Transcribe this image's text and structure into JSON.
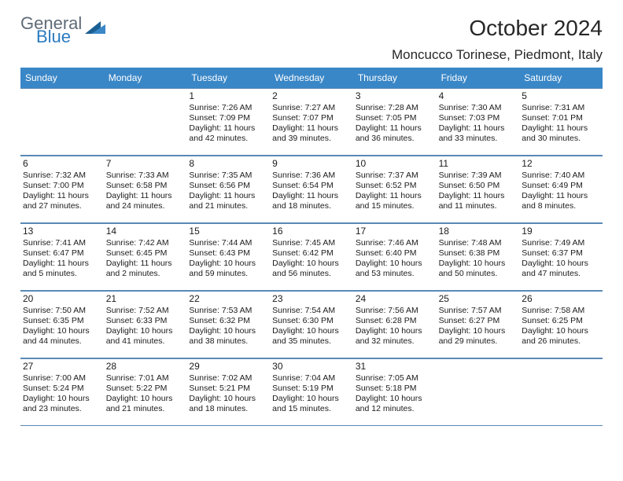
{
  "logo": {
    "word1": "General",
    "word2": "Blue"
  },
  "title": {
    "month": "October 2024",
    "location": "Moncucco Torinese, Piedmont, Italy"
  },
  "colors": {
    "header_bg": "#3a87c7",
    "header_fg": "#ffffff",
    "border": "#5a89b5",
    "text": "#1b1b1b",
    "logo_gray": "#5f6b76",
    "logo_blue": "#2b7bbf",
    "logo_tri_dark": "#1b5f93",
    "logo_tri_light": "#3a87c7"
  },
  "weekdays": [
    "Sunday",
    "Monday",
    "Tuesday",
    "Wednesday",
    "Thursday",
    "Friday",
    "Saturday"
  ],
  "layout": {
    "first_day_index": 2,
    "num_days": 31
  },
  "days": {
    "1": {
      "sunrise": "7:26 AM",
      "sunset": "7:09 PM",
      "daylight": "11 hours and 42 minutes."
    },
    "2": {
      "sunrise": "7:27 AM",
      "sunset": "7:07 PM",
      "daylight": "11 hours and 39 minutes."
    },
    "3": {
      "sunrise": "7:28 AM",
      "sunset": "7:05 PM",
      "daylight": "11 hours and 36 minutes."
    },
    "4": {
      "sunrise": "7:30 AM",
      "sunset": "7:03 PM",
      "daylight": "11 hours and 33 minutes."
    },
    "5": {
      "sunrise": "7:31 AM",
      "sunset": "7:01 PM",
      "daylight": "11 hours and 30 minutes."
    },
    "6": {
      "sunrise": "7:32 AM",
      "sunset": "7:00 PM",
      "daylight": "11 hours and 27 minutes."
    },
    "7": {
      "sunrise": "7:33 AM",
      "sunset": "6:58 PM",
      "daylight": "11 hours and 24 minutes."
    },
    "8": {
      "sunrise": "7:35 AM",
      "sunset": "6:56 PM",
      "daylight": "11 hours and 21 minutes."
    },
    "9": {
      "sunrise": "7:36 AM",
      "sunset": "6:54 PM",
      "daylight": "11 hours and 18 minutes."
    },
    "10": {
      "sunrise": "7:37 AM",
      "sunset": "6:52 PM",
      "daylight": "11 hours and 15 minutes."
    },
    "11": {
      "sunrise": "7:39 AM",
      "sunset": "6:50 PM",
      "daylight": "11 hours and 11 minutes."
    },
    "12": {
      "sunrise": "7:40 AM",
      "sunset": "6:49 PM",
      "daylight": "11 hours and 8 minutes."
    },
    "13": {
      "sunrise": "7:41 AM",
      "sunset": "6:47 PM",
      "daylight": "11 hours and 5 minutes."
    },
    "14": {
      "sunrise": "7:42 AM",
      "sunset": "6:45 PM",
      "daylight": "11 hours and 2 minutes."
    },
    "15": {
      "sunrise": "7:44 AM",
      "sunset": "6:43 PM",
      "daylight": "10 hours and 59 minutes."
    },
    "16": {
      "sunrise": "7:45 AM",
      "sunset": "6:42 PM",
      "daylight": "10 hours and 56 minutes."
    },
    "17": {
      "sunrise": "7:46 AM",
      "sunset": "6:40 PM",
      "daylight": "10 hours and 53 minutes."
    },
    "18": {
      "sunrise": "7:48 AM",
      "sunset": "6:38 PM",
      "daylight": "10 hours and 50 minutes."
    },
    "19": {
      "sunrise": "7:49 AM",
      "sunset": "6:37 PM",
      "daylight": "10 hours and 47 minutes."
    },
    "20": {
      "sunrise": "7:50 AM",
      "sunset": "6:35 PM",
      "daylight": "10 hours and 44 minutes."
    },
    "21": {
      "sunrise": "7:52 AM",
      "sunset": "6:33 PM",
      "daylight": "10 hours and 41 minutes."
    },
    "22": {
      "sunrise": "7:53 AM",
      "sunset": "6:32 PM",
      "daylight": "10 hours and 38 minutes."
    },
    "23": {
      "sunrise": "7:54 AM",
      "sunset": "6:30 PM",
      "daylight": "10 hours and 35 minutes."
    },
    "24": {
      "sunrise": "7:56 AM",
      "sunset": "6:28 PM",
      "daylight": "10 hours and 32 minutes."
    },
    "25": {
      "sunrise": "7:57 AM",
      "sunset": "6:27 PM",
      "daylight": "10 hours and 29 minutes."
    },
    "26": {
      "sunrise": "7:58 AM",
      "sunset": "6:25 PM",
      "daylight": "10 hours and 26 minutes."
    },
    "27": {
      "sunrise": "7:00 AM",
      "sunset": "5:24 PM",
      "daylight": "10 hours and 23 minutes."
    },
    "28": {
      "sunrise": "7:01 AM",
      "sunset": "5:22 PM",
      "daylight": "10 hours and 21 minutes."
    },
    "29": {
      "sunrise": "7:02 AM",
      "sunset": "5:21 PM",
      "daylight": "10 hours and 18 minutes."
    },
    "30": {
      "sunrise": "7:04 AM",
      "sunset": "5:19 PM",
      "daylight": "10 hours and 15 minutes."
    },
    "31": {
      "sunrise": "7:05 AM",
      "sunset": "5:18 PM",
      "daylight": "10 hours and 12 minutes."
    }
  },
  "labels": {
    "sunrise": "Sunrise:",
    "sunset": "Sunset:",
    "daylight": "Daylight:"
  }
}
